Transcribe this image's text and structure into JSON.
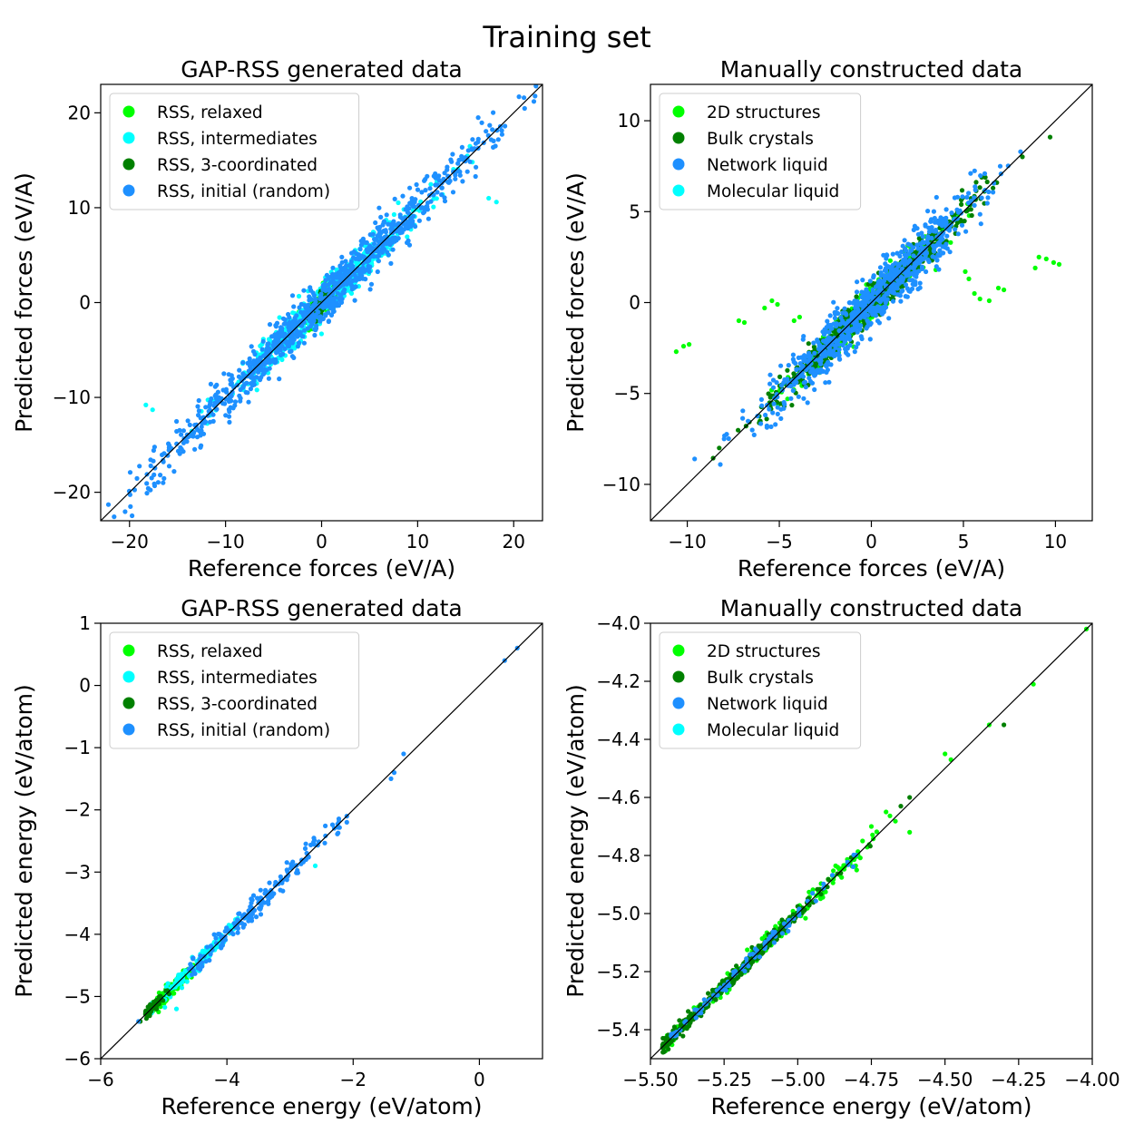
{
  "suptitle": "Training set",
  "colors": {
    "relaxed": "#00ff00",
    "intermediates": "#00ffff",
    "coordinated": "#008000",
    "initial": "#1e90ff",
    "structures2d": "#00ff00",
    "bulk": "#008000",
    "network": "#1e90ff",
    "molecular": "#00ffff"
  },
  "chart_data": [
    {
      "type": "scatter",
      "title": "GAP-RSS generated data",
      "xlabel": "Reference forces (eV/A)",
      "ylabel": "Predicted forces (eV/A)",
      "xlim": [
        -23,
        23
      ],
      "ylim": [
        -23,
        23
      ],
      "xticks": [
        -20,
        -10,
        0,
        10,
        20
      ],
      "yticks": [
        -20,
        -10,
        0,
        10,
        20
      ],
      "tick_labels_x": [
        "−20",
        "−10",
        "0",
        "10",
        "20"
      ],
      "tick_labels_y": [
        "−20",
        "−10",
        "0",
        "10",
        "20"
      ],
      "grid": false,
      "legend_position": "upper-left",
      "reference_line": "y = x",
      "series": [
        {
          "name": "RSS, relaxed",
          "color_key": "relaxed",
          "clusters": [
            {
              "c": 0.3,
              "s": 1.1,
              "n": 260,
              "noise": 0.7
            }
          ]
        },
        {
          "name": "RSS, intermediates",
          "color_key": "intermediates",
          "clusters": [
            {
              "c": 1.0,
              "s": 5.0,
              "n": 520,
              "noise": 1.0
            }
          ],
          "outliers": [
            [
              -18.3,
              -10.8
            ],
            [
              -17.6,
              -11.3
            ],
            [
              17.4,
              11.0
            ],
            [
              18.2,
              10.6
            ]
          ]
        },
        {
          "name": "RSS, 3-coordinated",
          "color_key": "coordinated",
          "clusters": [
            {
              "c": 0.0,
              "s": 0.6,
              "n": 110,
              "noise": 0.5
            }
          ]
        },
        {
          "name": "RSS, initial (random)",
          "color_key": "initial",
          "clusters": [
            {
              "c": 0.0,
              "s": 9.0,
              "n": 950,
              "noise": 1.2
            }
          ],
          "outliers": [
            [
              -22.2,
              -21.3
            ],
            [
              22.1,
              21.2
            ],
            [
              16.3,
              19.5
            ],
            [
              18.1,
              16.5
            ],
            [
              -16.5,
              -19.0
            ]
          ]
        }
      ]
    },
    {
      "type": "scatter",
      "title": "Manually constructed data",
      "xlabel": "Reference forces (eV/A)",
      "ylabel": "Predicted forces (eV/A)",
      "xlim": [
        -12,
        12
      ],
      "ylim": [
        -12,
        12
      ],
      "xticks": [
        -10,
        -5,
        0,
        5,
        10
      ],
      "yticks": [
        -10,
        -5,
        0,
        5,
        10
      ],
      "tick_labels_x": [
        "−10",
        "−5",
        "0",
        "5",
        "10"
      ],
      "tick_labels_y": [
        "−10",
        "−5",
        "0",
        "5",
        "10"
      ],
      "grid": false,
      "legend_position": "upper-left",
      "reference_line": "y = x",
      "series": [
        {
          "name": "2D structures",
          "color_key": "structures2d",
          "clusters": [
            {
              "c": 0.0,
              "s": 2.0,
              "n": 450,
              "noise": 0.45
            }
          ],
          "outliers": [
            [
              -10.6,
              -2.7
            ],
            [
              -10.2,
              -2.4
            ],
            [
              -9.9,
              -2.3
            ],
            [
              -7.2,
              -1.0
            ],
            [
              -6.9,
              -1.1
            ],
            [
              -5.8,
              -0.3
            ],
            [
              -5.4,
              0.1
            ],
            [
              -5.1,
              -0.1
            ],
            [
              -4.2,
              -1.0
            ],
            [
              -3.9,
              -0.8
            ],
            [
              3.5,
              1.8
            ],
            [
              5.1,
              1.7
            ],
            [
              5.3,
              1.3
            ],
            [
              5.6,
              0.5
            ],
            [
              5.9,
              0.2
            ],
            [
              6.4,
              0.1
            ],
            [
              6.9,
              0.8
            ],
            [
              7.2,
              0.7
            ],
            [
              9.1,
              2.5
            ],
            [
              9.5,
              2.4
            ],
            [
              9.9,
              2.2
            ],
            [
              10.2,
              2.1
            ],
            [
              8.9,
              1.9
            ]
          ]
        },
        {
          "name": "Bulk crystals",
          "color_key": "bulk",
          "clusters": [
            {
              "c": 0.0,
              "s": 2.6,
              "n": 650,
              "noise": 0.45
            }
          ]
        },
        {
          "name": "Network liquid",
          "color_key": "network",
          "clusters": [
            {
              "c": 0.0,
              "s": 2.8,
              "n": 750,
              "noise": 0.75
            }
          ],
          "outliers": [
            [
              -9.6,
              -8.6
            ],
            [
              8.1,
              8.3
            ],
            [
              7.0,
              7.5
            ],
            [
              -8.0,
              -7.5
            ]
          ]
        },
        {
          "name": "Molecular liquid",
          "color_key": "molecular",
          "clusters": []
        }
      ]
    },
    {
      "type": "scatter",
      "title": "GAP-RSS generated data",
      "xlabel": "Reference energy (eV/atom)",
      "ylabel": "Predicted energy (eV/atom)",
      "xlim": [
        -6,
        1
      ],
      "ylim": [
        -6,
        1
      ],
      "xticks": [
        -6,
        -4,
        -2,
        0
      ],
      "yticks": [
        -6,
        -5,
        -4,
        -3,
        -2,
        -1,
        0,
        1
      ],
      "tick_labels_x": [
        "−6",
        "−4",
        "−2",
        "0"
      ],
      "tick_labels_y": [
        "−6",
        "−5",
        "−4",
        "−3",
        "−2",
        "−1",
        "0",
        "1"
      ],
      "grid": false,
      "legend_position": "upper-left",
      "reference_line": "y = x",
      "series": [
        {
          "name": "RSS, relaxed",
          "color_key": "relaxed",
          "clusters": [
            {
              "c": -4.85,
              "s": 0.15,
              "n": 160,
              "noise": 0.06,
              "min": -5.2,
              "max": -4.5
            }
          ]
        },
        {
          "name": "RSS, intermediates",
          "color_key": "intermediates",
          "clusters": [
            {
              "c": -4.45,
              "s": 0.35,
              "n": 140,
              "noise": 0.07,
              "min": -5.2,
              "max": -3.0
            }
          ],
          "outliers": [
            [
              -2.6,
              -2.9
            ],
            [
              -4.8,
              -5.2
            ]
          ]
        },
        {
          "name": "RSS, 3-coordinated",
          "color_key": "coordinated",
          "clusters": [
            {
              "c": -5.15,
              "s": 0.1,
              "n": 70,
              "noise": 0.04,
              "min": -5.4,
              "max": -4.9
            }
          ]
        },
        {
          "name": "RSS, initial (random)",
          "color_key": "initial",
          "clusters": [
            {
              "c": -3.5,
              "s": 0.7,
              "n": 180,
              "noise": 0.08,
              "min": -4.6,
              "max": -2.2
            }
          ],
          "outliers": [
            [
              0.4,
              0.4
            ],
            [
              0.6,
              0.6
            ],
            [
              -1.2,
              -1.1
            ],
            [
              -1.4,
              -1.5
            ],
            [
              -1.35,
              -1.4
            ],
            [
              -2.1,
              -2.1
            ],
            [
              -2.1,
              -2.2
            ],
            [
              -5.4,
              -5.4
            ]
          ]
        }
      ]
    },
    {
      "type": "scatter",
      "title": "Manually constructed data",
      "xlabel": "Reference energy (eV/atom)",
      "ylabel": "Predicted energy (eV/atom)",
      "xlim": [
        -5.5,
        -4.0
      ],
      "ylim": [
        -5.5,
        -4.0
      ],
      "xticks": [
        -5.5,
        -5.25,
        -5.0,
        -4.75,
        -4.5,
        -4.25,
        -4.0
      ],
      "yticks": [
        -5.4,
        -5.2,
        -5.0,
        -4.8,
        -4.6,
        -4.4,
        -4.2,
        -4.0
      ],
      "tick_labels_x": [
        "−5.50",
        "−5.25",
        "−5.00",
        "−4.75",
        "−4.50",
        "−4.25",
        "−4.00"
      ],
      "tick_labels_y": [
        "−5.4",
        "−5.2",
        "−5.0",
        "−4.8",
        "−4.6",
        "−4.4",
        "−4.2",
        "−4.0"
      ],
      "grid": false,
      "legend_position": "upper-left",
      "reference_line": "y = x",
      "series": [
        {
          "name": "2D structures",
          "color_key": "structures2d",
          "clusters": [
            {
              "c": -5.1,
              "s": 0.2,
              "n": 180,
              "noise": 0.015,
              "min": -5.45,
              "max": -4.6
            }
          ],
          "outliers": [
            [
              -4.02,
              -4.02
            ],
            [
              -4.2,
              -4.21
            ],
            [
              -4.35,
              -4.35
            ],
            [
              -4.5,
              -4.45
            ],
            [
              -4.48,
              -4.47
            ],
            [
              -4.62,
              -4.72
            ],
            [
              -4.7,
              -4.65
            ],
            [
              -4.75,
              -4.7
            ],
            [
              -4.8,
              -4.85
            ],
            [
              -4.78,
              -4.75
            ]
          ]
        },
        {
          "name": "Bulk crystals",
          "color_key": "bulk",
          "clusters": [
            {
              "c": -5.25,
              "s": 0.15,
              "n": 380,
              "noise": 0.012,
              "min": -5.46,
              "max": -4.6
            }
          ],
          "outliers": [
            [
              -4.62,
              -4.6
            ],
            [
              -4.65,
              -4.63
            ],
            [
              -4.3,
              -4.35
            ]
          ]
        },
        {
          "name": "Network liquid",
          "color_key": "network",
          "clusters": [
            {
              "c": -5.15,
              "s": 0.2,
              "n": 90,
              "noise": 0.012,
              "min": -5.45,
              "max": -4.8
            }
          ]
        },
        {
          "name": "Molecular liquid",
          "color_key": "molecular",
          "clusters": []
        }
      ]
    }
  ]
}
